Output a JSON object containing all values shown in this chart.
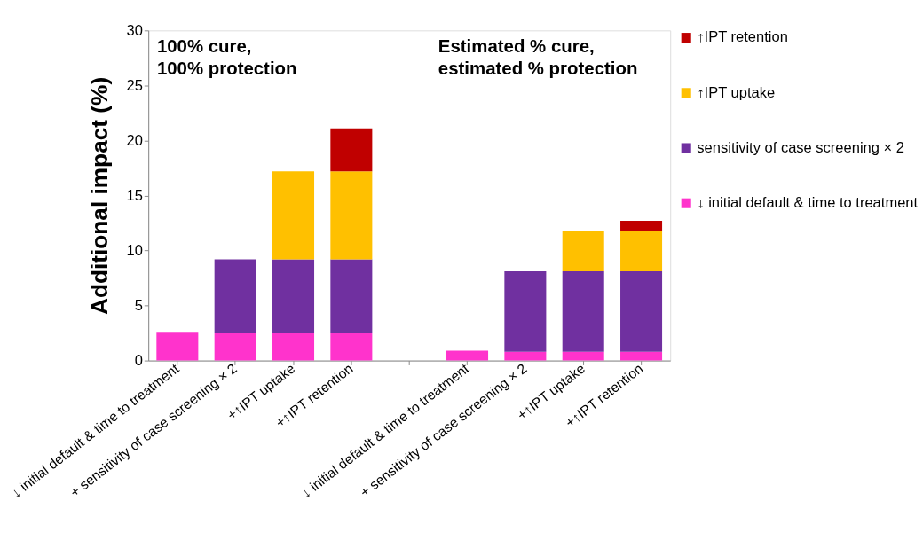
{
  "chart_data": {
    "type": "bar",
    "stacked": true,
    "ylabel": "Additional impact (%)",
    "categories": [
      "↓ initial default & time to treatment",
      "+ sensitivity of case screening × 2",
      "+↑IPT uptake",
      "+↑IPT retention",
      null,
      "↓ initial default & time to treatment",
      "+ sensitivity of case screening × 2",
      "+↑IPT uptake",
      "+↑IPT retention"
    ],
    "series": [
      {
        "name": "↓ initial default & time to treatment",
        "color": "#ff33cc",
        "values": [
          2.6,
          2.5,
          2.5,
          2.5,
          null,
          0.9,
          0.8,
          0.8,
          0.8
        ]
      },
      {
        "name": "sensitivity of case screening × 2",
        "color": "#7030a0",
        "values": [
          null,
          6.7,
          6.7,
          6.7,
          null,
          null,
          7.3,
          7.3,
          7.3
        ]
      },
      {
        "name": "↑IPT uptake",
        "color": "#ffc000",
        "values": [
          null,
          null,
          8.0,
          8.0,
          null,
          null,
          null,
          3.7,
          3.7
        ]
      },
      {
        "name": "↑IPT retention",
        "color": "#c00000",
        "values": [
          null,
          null,
          null,
          3.9,
          null,
          null,
          null,
          null,
          0.9
        ]
      }
    ],
    "ylim": [
      0,
      30
    ],
    "yticks": [
      0,
      5,
      10,
      15,
      20,
      25,
      30
    ],
    "grid": false,
    "legend": "right",
    "annotations": [
      "100% cure,\n100% protection",
      "Estimated % cure,\nestimated % protection"
    ]
  }
}
